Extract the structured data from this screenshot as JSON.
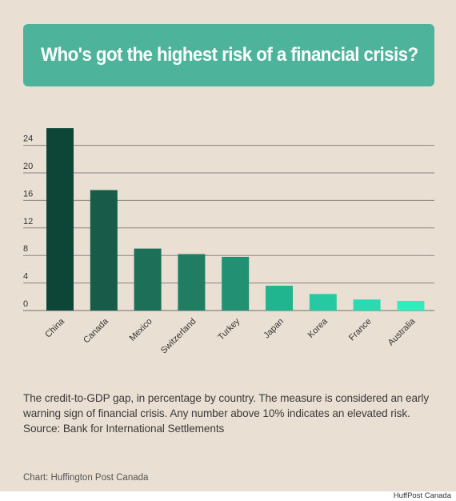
{
  "title": "Who's got the highest risk of a financial crisis?",
  "caption": "The credit-to-GDP gap, in percentage by country. The measure is considered an early warning sign of financial crisis. Any number above 10% indicates an elevated risk. Source: Bank for International Settlements",
  "credit": "Chart: Huffington Post Canada",
  "brand": "HuffPost Canada",
  "colors": {
    "background": "#e9e0d3",
    "banner": "#4db39a",
    "gridline": "#8a8580"
  },
  "chart_data": {
    "type": "bar",
    "categories": [
      "China",
      "Canada",
      "Mexico",
      "Switzerland",
      "Turkey",
      "Japan",
      "Korea",
      "France",
      "Australia"
    ],
    "values": [
      26.5,
      17.5,
      9.0,
      8.2,
      7.8,
      3.6,
      2.4,
      1.6,
      1.4
    ],
    "bar_colors": [
      "#0d4637",
      "#175b48",
      "#1e6f57",
      "#217d62",
      "#219073",
      "#21b58f",
      "#26c9a1",
      "#2bdab0",
      "#30edbe"
    ],
    "yticks": [
      0,
      4,
      8,
      12,
      16,
      20,
      24
    ],
    "ylim": [
      0,
      28
    ],
    "grid": true,
    "title": "",
    "xlabel": "",
    "ylabel": ""
  }
}
